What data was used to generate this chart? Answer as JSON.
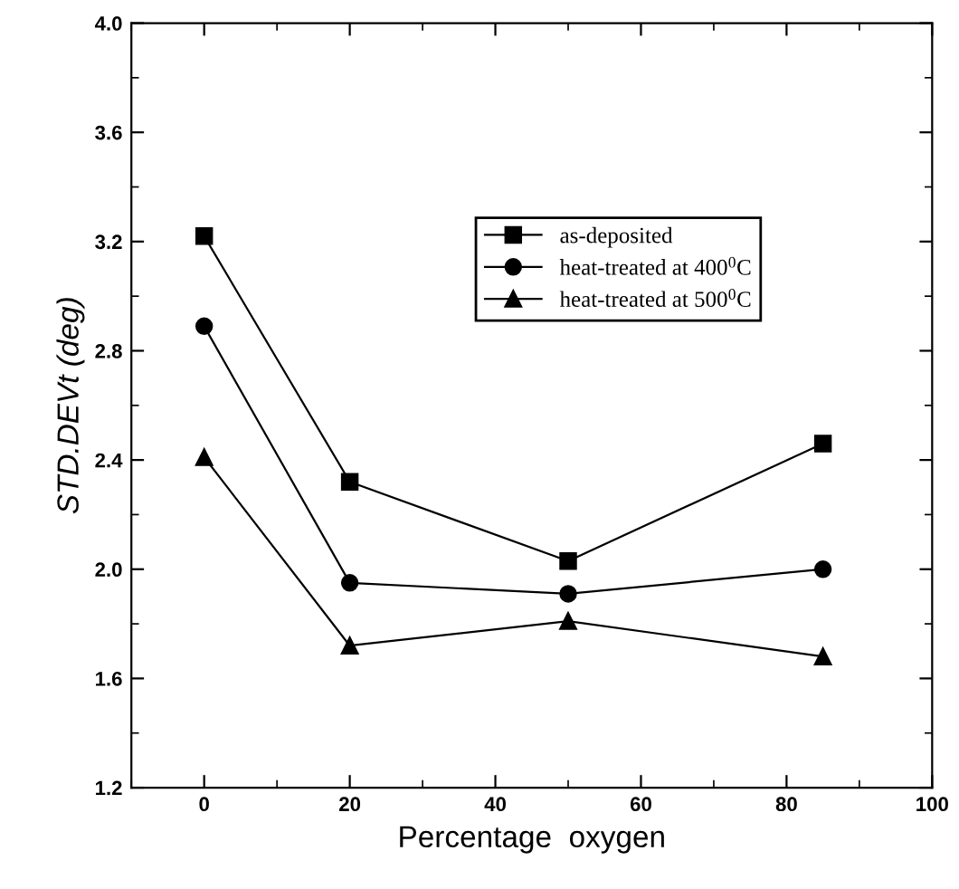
{
  "chart_data": {
    "type": "line",
    "xlabel": "Percentage  oxygen",
    "ylabel": "STD.DEVt (deg)",
    "x": [
      0,
      20,
      50,
      85
    ],
    "series": [
      {
        "name": "as-deposited",
        "color": "#000000",
        "marker": "square",
        "values": [
          3.22,
          2.32,
          2.03,
          2.46
        ]
      },
      {
        "name": "heat-treated at 400$^{0}$C",
        "color": "#000000",
        "marker": "circle",
        "values": [
          2.89,
          1.95,
          1.91,
          2.0
        ]
      },
      {
        "name": "heat-treated at 500$^{0}$C",
        "color": "#000000",
        "marker": "triangle",
        "values": [
          2.41,
          1.72,
          1.81,
          1.68
        ]
      }
    ],
    "xlim": [
      -10,
      100
    ],
    "xticks": [
      0,
      20,
      40,
      60,
      80,
      100
    ],
    "ylim": [
      1.2,
      4.0
    ],
    "yticks": [
      {
        "value": 1.2,
        "label": "1.2"
      },
      1.6,
      {
        "value": 2.0,
        "label": "2.0"
      },
      2.4,
      2.8,
      3.2,
      3.6,
      {
        "value": 4.0,
        "label": "4.0"
      }
    ],
    "grid": false,
    "legend": "top right",
    "line_style": "solid"
  }
}
